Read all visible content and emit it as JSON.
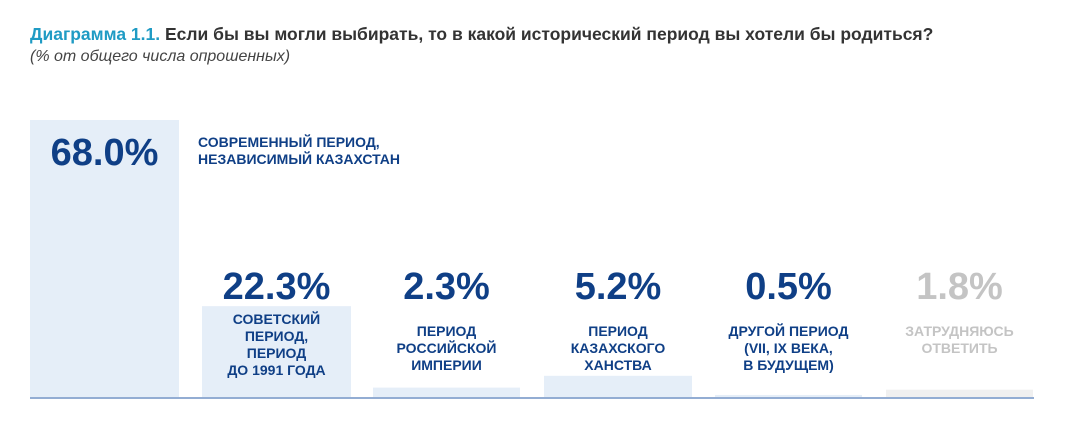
{
  "header": {
    "title_prefix": "Диаграмма 1.1.",
    "title_text": "Если бы вы могли выбирать, то в какой исторический период вы хотели бы родиться?",
    "subtitle": "(% от общего числа опрошенных)"
  },
  "chart_data": {
    "type": "bar",
    "title": "Диаграмма 1.1. Если бы вы могли выбирать, то в какой исторический период вы хотели бы родиться?",
    "subtitle": "(% от общего числа опрошенных)",
    "unit": "%",
    "categories": [
      "СОВРЕМЕННЫЙ ПЕРИОД, НЕЗАВИСИМЫЙ КАЗАХСТАН",
      "СОВЕТСКИЙ ПЕРИОД, ПЕРИОД ДО 1991 ГОДА",
      "ПЕРИОД РОССИЙСКОЙ ИМПЕРИИ",
      "ПЕРИОД КАЗАХСКОГО ХАНСТВА",
      "ДРУГОЙ ПЕРИОД (VII, IX ВЕКА, В БУДУЩЕМ)",
      "ЗАТРУДНЯЮСЬ ОТВЕТИТЬ"
    ],
    "values": [
      68.0,
      22.3,
      2.3,
      5.2,
      0.5,
      1.8
    ],
    "value_labels": [
      "68.0%",
      "22.3%",
      "2.3%",
      "5.2%",
      "0.5%",
      "1.8%"
    ],
    "label_lines": [
      [
        "СОВРЕМЕННЫЙ ПЕРИОД,",
        "НЕЗАВИСИМЫЙ КАЗАХСТАН"
      ],
      [
        "СОВЕТСКИЙ",
        "ПЕРИОД,",
        "ПЕРИОД",
        "ДО 1991 ГОДА"
      ],
      [
        "ПЕРИОД",
        "РОССИЙСКОЙ",
        "ИМПЕРИИ"
      ],
      [
        "ПЕРИОД",
        "КАЗАХСКОГО",
        "ХАНСТВА"
      ],
      [
        "ДРУГОЙ ПЕРИОД",
        "(VII, IX ВЕКА,",
        "В БУДУЩЕМ)"
      ],
      [
        "ЗАТРУДНЯЮСЬ",
        "ОТВЕТИТЬ"
      ]
    ],
    "colors": {
      "bar": "#e5eef8",
      "bar_muted": "#f0f0f0",
      "text": "#0f3f86",
      "text_muted": "#c4c4c4",
      "axis": "#93add3"
    },
    "ylim": [
      0,
      68
    ],
    "grid": false,
    "legend": "none"
  }
}
